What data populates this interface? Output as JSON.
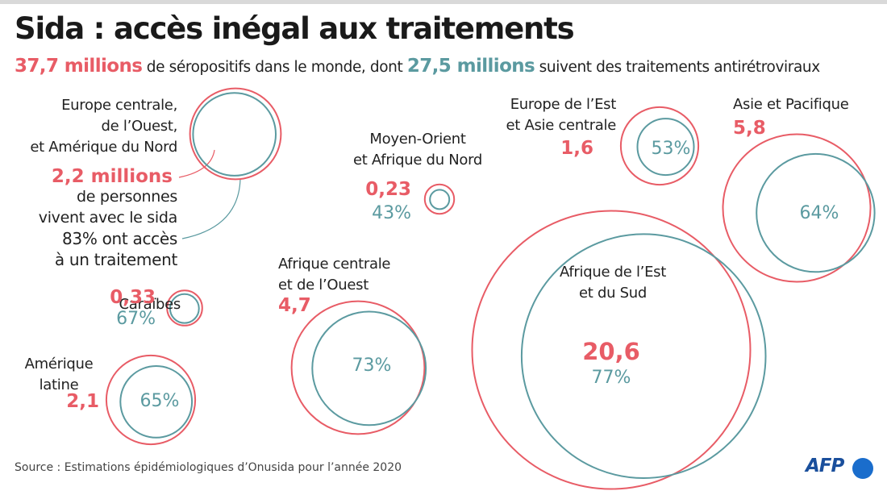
{
  "title": "Sida : accès inégal aux traitements",
  "subtitle": {
    "total_value": "37,7 millions",
    "text_1": " de séropositifs dans le monde, dont ",
    "treated_value": "27,5 millions",
    "text_2": " suivent des traitements antirétroviraux"
  },
  "colors": {
    "living": "#e85c66",
    "treated": "#5b9aa0"
  },
  "legend": {
    "living_value": "2,2 millions",
    "living_text_1": "de personnes",
    "living_text_2": "vivent avec le sida",
    "treated_text_1": "83% ont accès",
    "treated_text_2": "à un traitement"
  },
  "chart_data": {
    "type": "bubble",
    "unit_living": "millions",
    "unit_treated": "%",
    "regions": [
      {
        "name_lines": [
          "Europe centrale,",
          "de l’Ouest,",
          "et Amérique du Nord"
        ],
        "living": 2.2,
        "living_label": "",
        "treated_pct": 83,
        "treated_label": ""
      },
      {
        "name_lines": [
          "Caraïbes"
        ],
        "living": 0.33,
        "living_label": "0,33",
        "treated_pct": 67,
        "treated_label": "67%"
      },
      {
        "name_lines": [
          "Amérique",
          "latine"
        ],
        "living": 2.1,
        "living_label": "2,1",
        "treated_pct": 65,
        "treated_label": "65%"
      },
      {
        "name_lines": [
          "Moyen-Orient",
          "et Afrique du Nord"
        ],
        "living": 0.23,
        "living_label": "0,23",
        "treated_pct": 43,
        "treated_label": "43%"
      },
      {
        "name_lines": [
          "Afrique centrale",
          "et de l’Ouest"
        ],
        "living": 4.7,
        "living_label": "4,7",
        "treated_pct": 73,
        "treated_label": "73%"
      },
      {
        "name_lines": [
          "Europe de l’Est",
          "et Asie centrale"
        ],
        "living": 1.6,
        "living_label": "1,6",
        "treated_pct": 53,
        "treated_label": "53%"
      },
      {
        "name_lines": [
          "Asie et Pacifique"
        ],
        "living": 5.8,
        "living_label": "5,8",
        "treated_pct": 64,
        "treated_label": "64%"
      },
      {
        "name_lines": [
          "Afrique de l’Est",
          "et du Sud"
        ],
        "living": 20.6,
        "living_label": "20,6",
        "treated_pct": 77,
        "treated_label": "77%"
      }
    ]
  },
  "source": "Source : Estimations épidémiologiques d’Onusida pour l’année 2020",
  "logo_text": "AFP"
}
